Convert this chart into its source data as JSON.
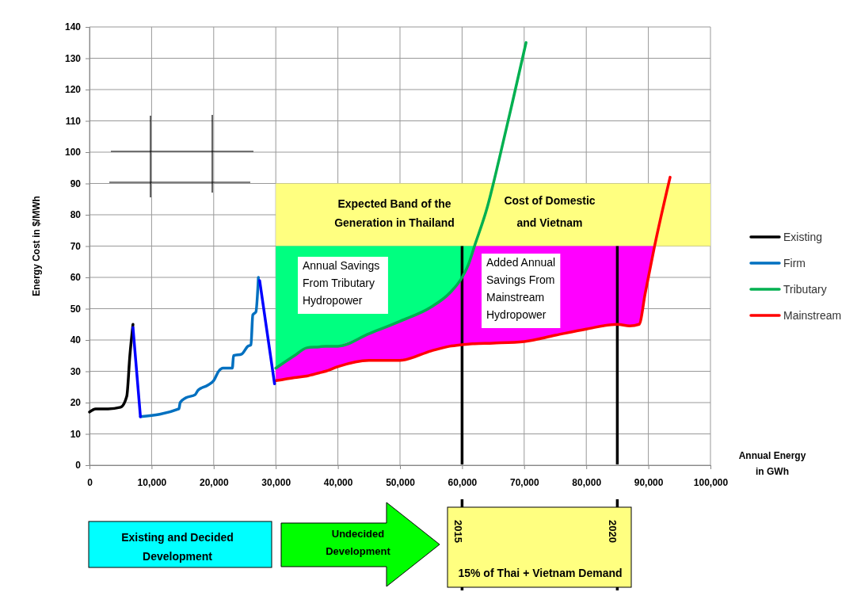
{
  "chart_data": {
    "type": "line",
    "xlabel": "Annual Energy\nin GWh",
    "ylabel": "Energy Cost in $/MWh",
    "xlim": [
      0,
      100000
    ],
    "ylim": [
      0,
      140
    ],
    "xticks": [
      0,
      {
        "value": 10000,
        "label": "10,000"
      },
      {
        "value": 20000,
        "label": "20,000"
      },
      {
        "value": 30000,
        "label": "30,000"
      },
      {
        "value": 40000,
        "label": "40,000"
      },
      {
        "value": 50000,
        "label": "50,000"
      },
      {
        "value": 60000,
        "label": "60,000"
      },
      {
        "value": 70000,
        "label": "70,000"
      },
      {
        "value": 80000,
        "label": "80,000"
      },
      {
        "value": 90000,
        "label": "90,000"
      },
      {
        "value": 100000,
        "label": "100,000"
      }
    ],
    "yticks": [
      0,
      10,
      20,
      30,
      40,
      50,
      60,
      70,
      80,
      90,
      100,
      110,
      120,
      130,
      140
    ],
    "grid": true,
    "legend": "right",
    "line_style": "solid",
    "marker": "none",
    "series": [
      {
        "color": "#ffff80",
        "x": [
          30000,
          100000
        ],
        "values": [
          null,
          null
        ],
        "upper": [
          90,
          90
        ],
        "lower": [
          70,
          70
        ]
      },
      {
        "color": "#00ff80",
        "x": [
          30000,
          33000,
          35000,
          37000,
          38000,
          40000,
          45000,
          50000,
          55000,
          58000,
          60000,
          61000,
          62000
        ],
        "values": [
          null,
          null,
          null,
          null,
          null,
          null,
          null,
          null,
          null,
          null,
          null,
          null,
          null
        ],
        "upper": [
          70,
          70,
          70,
          70,
          70,
          70,
          70,
          70,
          70,
          70,
          70,
          70,
          70
        ],
        "lower": [
          31,
          35,
          37.5,
          37.8,
          38,
          38,
          42,
          46,
          50.5,
          55,
          60,
          64,
          70
        ]
      },
      {
        "color": "#ff00ff",
        "x": [
          30000,
          33000,
          35000,
          37000,
          38000,
          40000,
          45000,
          50000,
          55000,
          58000,
          60000,
          61000,
          62000,
          65000,
          70000,
          75000,
          80000,
          85000,
          87000,
          88500,
          89500,
          91000
        ],
        "values": [
          null,
          null,
          null,
          null,
          null,
          null,
          null,
          null,
          null,
          null,
          null,
          null,
          null,
          null,
          null,
          null,
          null,
          null,
          null,
          null,
          null,
          null
        ],
        "upper": [
          31,
          35,
          37.5,
          37.8,
          38,
          38,
          42,
          46,
          50.5,
          55,
          60,
          64,
          70,
          70,
          70,
          70,
          70,
          70,
          70,
          70,
          70,
          70
        ],
        "lower": [
          27,
          28,
          28.5,
          29.5,
          30,
          31.5,
          33.5,
          33.5,
          36.5,
          38,
          38.5,
          38.7,
          38.8,
          39,
          39.5,
          41.5,
          43.5,
          45,
          44.5,
          45,
          55,
          70
        ]
      },
      {
        "name": "Existing",
        "color": "#000000",
        "x": [
          0,
          1000,
          3000,
          5000,
          6000,
          6500,
          7000
        ],
        "values": [
          17,
          18,
          18,
          18.5,
          22,
          35,
          45
        ]
      },
      {
        "name": "Firm",
        "color": "#0070c0",
        "x": [
          8200,
          14400,
          14600,
          15500,
          17000,
          17500,
          19000,
          20000,
          20800,
          21500,
          23000,
          23200,
          24500,
          25500,
          26000,
          26300,
          26800,
          27200
        ],
        "values": [
          15.5,
          18,
          20,
          21.5,
          22.5,
          24,
          25.5,
          27,
          30,
          31,
          31,
          35,
          35.5,
          38,
          38.5,
          48,
          49,
          60
        ]
      },
      {
        "name": "Tributary",
        "color": "#00b050",
        "x": [
          30000,
          33000,
          35000,
          37000,
          38000,
          40000,
          45000,
          50000,
          55000,
          58000,
          60000,
          61000,
          62000,
          64000,
          66000,
          68000,
          70300
        ],
        "values": [
          31,
          35,
          37.5,
          37.8,
          38,
          38,
          42,
          46,
          50.5,
          55,
          60,
          64,
          70,
          82,
          98,
          115,
          135
        ]
      },
      {
        "name": "Mainstream",
        "color": "#ff0000",
        "x": [
          30000,
          33000,
          35000,
          37000,
          38000,
          40000,
          45000,
          50000,
          55000,
          58000,
          60000,
          61000,
          62000,
          65000,
          70000,
          75000,
          80000,
          85000,
          87000,
          88500,
          89500,
          91000,
          93500
        ],
        "values": [
          27,
          28,
          28.5,
          29.5,
          30,
          31.5,
          33.5,
          33.5,
          36.5,
          38,
          38.5,
          38.7,
          38.8,
          39,
          39.5,
          41.5,
          43.5,
          45,
          44.5,
          45,
          55,
          70,
          92
        ]
      },
      {
        "color": "#0000ff",
        "x": [
          7000,
          8200,
          20000,
          27400,
          29800
        ],
        "values": [
          44,
          15.5,
          null,
          59,
          26
        ]
      }
    ],
    "ref_lines": [
      {
        "axis": "x",
        "value": 60000,
        "color": "#000000"
      },
      {
        "axis": "x",
        "value": 85000,
        "color": "#000000"
      }
    ],
    "annotations": [
      "Expected Band of the\nGeneration in Thailand",
      "Cost of Domestic\nand Vietnam",
      "Annual Savings\nFrom Tributary\nHydropower",
      "Added Annual\nSavings From\nMainstream\nHydropower",
      "Existing and Decided\nDevelopment",
      "Undecided\nDevelopment",
      "15% of Thai + Vietnam Demand",
      "2015",
      "2020"
    ]
  }
}
